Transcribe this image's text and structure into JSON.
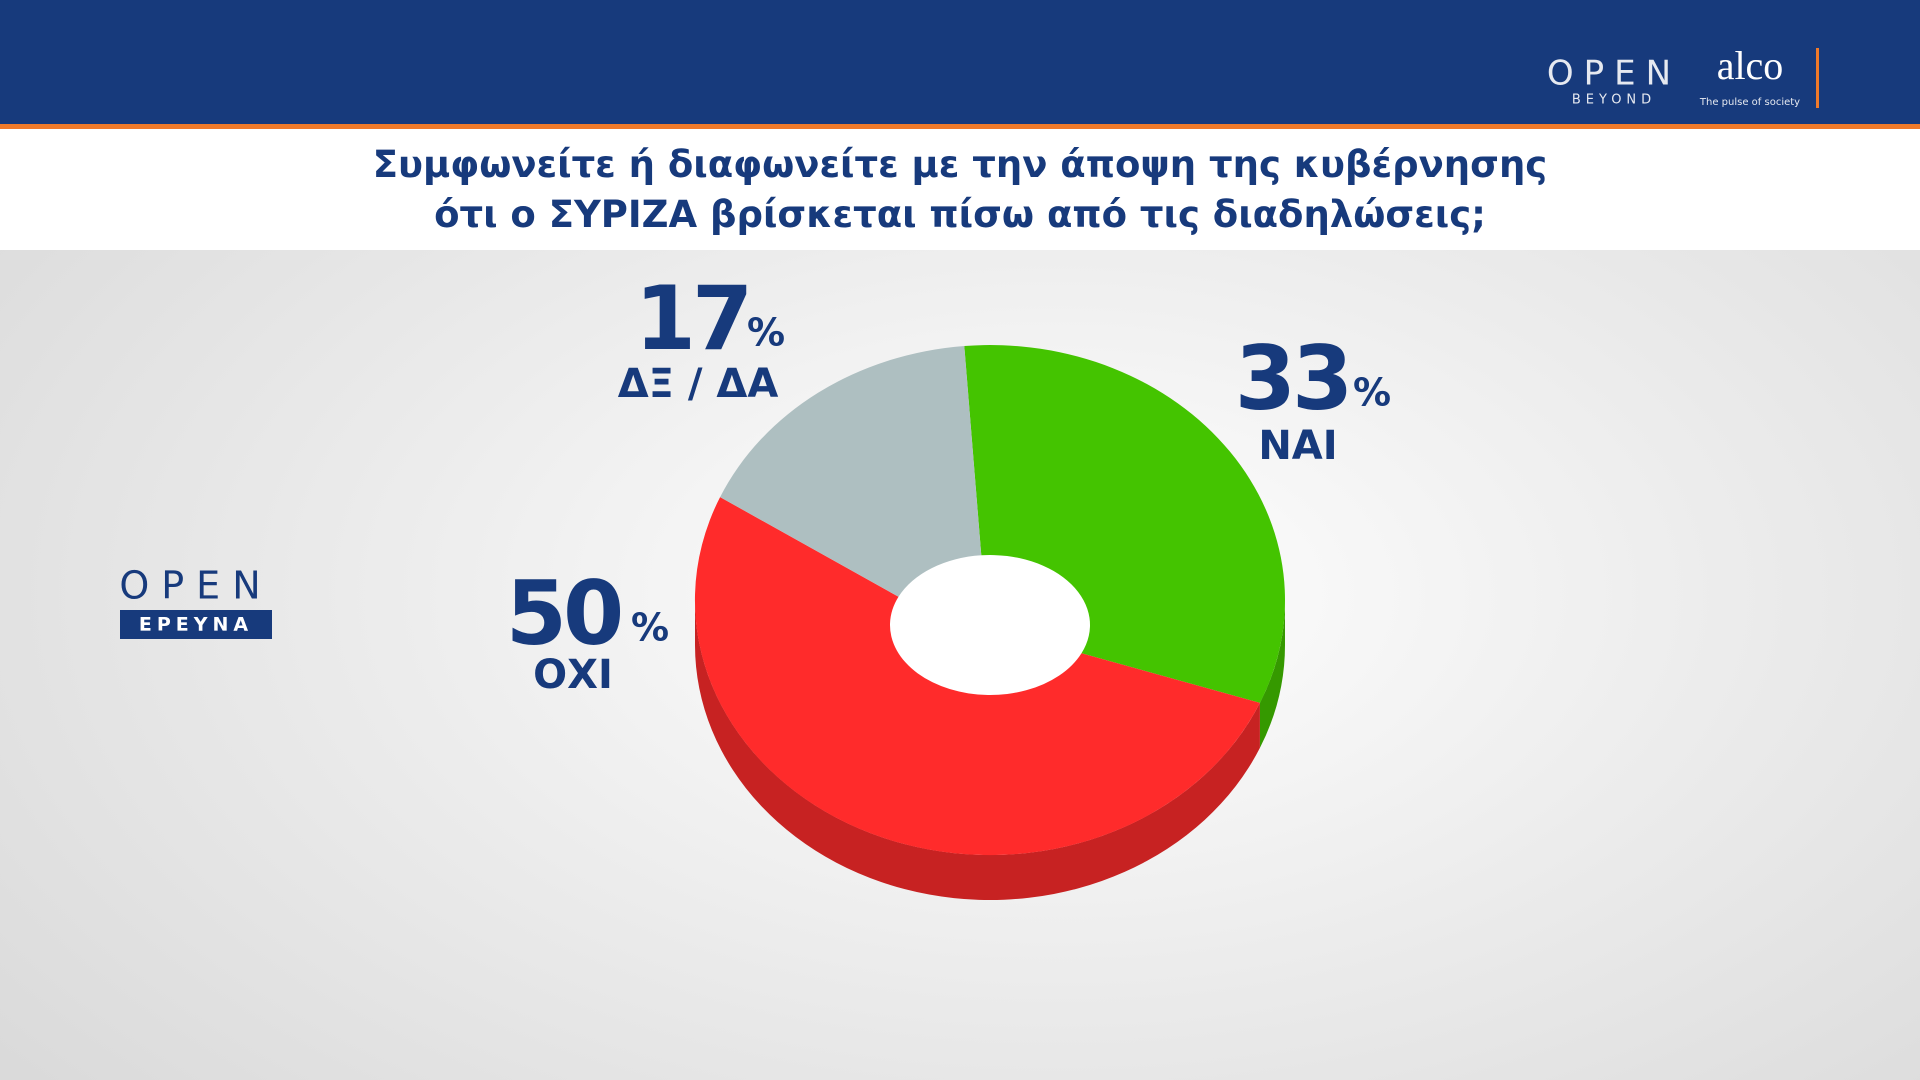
{
  "branding": {
    "open_top": "OPEN",
    "beyond": "BEYOND",
    "alco": "alco",
    "alco_tagline": "The pulse of society",
    "open_left": "OPEN",
    "erevna": "ΕΡΕΥΝΑ"
  },
  "chart_data": {
    "type": "pie",
    "donut": true,
    "title": "Συμφωνείτε ή διαφωνείτε με την άποψη της κυβέρνησης\nότι ο ΣΥΡΙΖΑ βρίσκεται πίσω από τις διαδηλώσεις;",
    "unit": "%",
    "categories": [
      "ΝΑΙ",
      "ΟΧΙ",
      "ΔΞ / ΔΑ"
    ],
    "values": [
      33,
      50,
      17
    ],
    "colors": [
      "#44c400",
      "#ff2b2b",
      "#aebfc1"
    ]
  }
}
